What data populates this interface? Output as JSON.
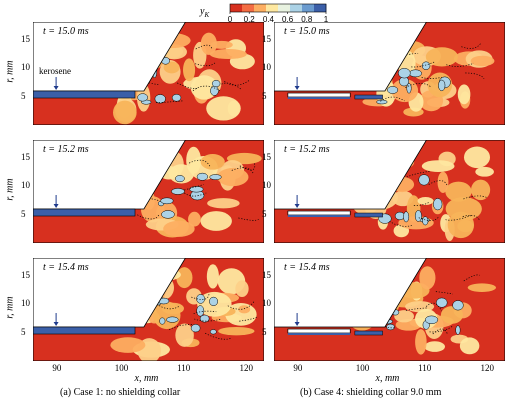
{
  "colorbar": {
    "label": "y",
    "label_sub": "K",
    "ticks": [
      "0",
      "0.2",
      "0.4",
      "0.6",
      "0.8",
      "1"
    ],
    "colors": [
      "#d7301f",
      "#f46d43",
      "#fdae61",
      "#fee8a0",
      "#e8f2e0",
      "#abd2e6",
      "#6a9bcf",
      "#3b5fa8"
    ]
  },
  "panels": [
    {
      "time_label": "t = 15.0 ms",
      "case": 1
    },
    {
      "time_label": "t = 15.0 ms",
      "case": 4
    },
    {
      "time_label": "t = 15.2 ms",
      "case": 1
    },
    {
      "time_label": "t = 15.2 ms",
      "case": 4
    },
    {
      "time_label": "t = 15.4 ms",
      "case": 1
    },
    {
      "time_label": "t = 15.4 ms",
      "case": 4
    }
  ],
  "annotation": {
    "kerosene": "kerosene"
  },
  "y_axis": {
    "label": "r, mm",
    "ticks": [
      "5",
      "10",
      "15"
    ]
  },
  "x_axis": {
    "label": "x, mm",
    "ticks": [
      "90",
      "100",
      "110",
      "120"
    ]
  },
  "captions": {
    "left": "(a) Case 1: no shielding collar",
    "right": "(b) Case 4: shielding collar 9.0 mm"
  }
}
